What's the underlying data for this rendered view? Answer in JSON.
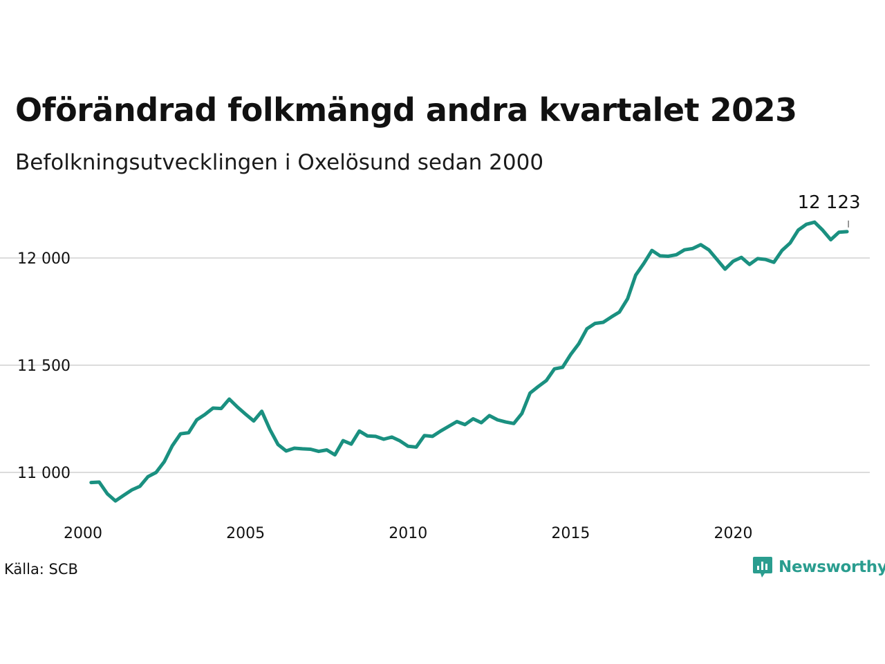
{
  "title": "Oförändrad folkmängd andra kvartalet 2023",
  "subtitle": "Befolkningsutvecklingen i Oxelösund sedan 2000",
  "source": "Källa: SCB",
  "brand": {
    "name": "Newsworthy",
    "icon": "newsworthy-logo-icon",
    "color": "#2a9d8f"
  },
  "chart_data": {
    "type": "line",
    "title": "Oförändrad folkmängd andra kvartalet 2023",
    "subtitle": "Befolkningsutvecklingen i Oxelösund sedan 2000",
    "xlabel": "",
    "ylabel": "",
    "x_ticks": [
      {
        "value": 2000,
        "label": "2000"
      },
      {
        "value": 2005,
        "label": "2005"
      },
      {
        "value": 2010,
        "label": "2010"
      },
      {
        "value": 2015,
        "label": "2015"
      },
      {
        "value": 2020,
        "label": "2020"
      }
    ],
    "y_ticks": [
      {
        "value": 11000,
        "label": "11 000"
      },
      {
        "value": 11500,
        "label": "11 500"
      },
      {
        "value": 12000,
        "label": "12 000"
      }
    ],
    "xlim": [
      2000,
      2024.2
    ],
    "ylim": [
      10800,
      12300
    ],
    "grid": "horizontal",
    "line_color": "#1a9080",
    "annotation": {
      "x": 2023.5,
      "value": 12123,
      "label": "12 123"
    },
    "series": [
      {
        "x": [
          2000.25,
          2000.5,
          2000.75,
          2001,
          2001.25,
          2001.5,
          2001.75,
          2002,
          2002.25,
          2002.5,
          2002.75,
          2003,
          2003.25,
          2003.5,
          2003.75,
          2004,
          2004.25,
          2004.5,
          2004.75,
          2005,
          2005.25,
          2005.5,
          2005.75,
          2006,
          2006.25,
          2006.5,
          2006.75,
          2007,
          2007.25,
          2007.5,
          2007.75,
          2008,
          2008.25,
          2008.5,
          2008.75,
          2009,
          2009.25,
          2009.5,
          2009.75,
          2010,
          2010.25,
          2010.5,
          2010.75,
          2011,
          2011.25,
          2011.5,
          2011.75,
          2012,
          2012.25,
          2012.5,
          2012.75,
          2013,
          2013.25,
          2013.5,
          2013.75,
          2014,
          2014.25,
          2014.5,
          2014.75,
          2015,
          2015.25,
          2015.5,
          2015.75,
          2016,
          2016.25,
          2016.5,
          2016.75,
          2017,
          2017.25,
          2017.5,
          2017.75,
          2018,
          2018.25,
          2018.5,
          2018.75,
          2019,
          2019.25,
          2019.5,
          2019.75,
          2020,
          2020.25,
          2020.5,
          2020.75,
          2021,
          2021.25,
          2021.5,
          2021.75,
          2022,
          2022.25,
          2022.5,
          2022.75,
          2023,
          2023.25,
          2023.5
        ],
        "values": [
          10953,
          10955,
          10900,
          10867,
          10893,
          10918,
          10935,
          10980,
          11000,
          11050,
          11125,
          11180,
          11185,
          11245,
          11270,
          11300,
          11298,
          11342,
          11305,
          11272,
          11240,
          11285,
          11200,
          11130,
          11100,
          11113,
          11110,
          11108,
          11098,
          11105,
          11082,
          11148,
          11132,
          11193,
          11170,
          11168,
          11155,
          11165,
          11147,
          11122,
          11118,
          11172,
          11168,
          11193,
          11215,
          11237,
          11223,
          11250,
          11232,
          11265,
          11245,
          11235,
          11228,
          11275,
          11370,
          11400,
          11428,
          11483,
          11490,
          11550,
          11600,
          11670,
          11695,
          11700,
          11725,
          11748,
          11810,
          11920,
          11975,
          12035,
          12010,
          12008,
          12015,
          12038,
          12044,
          12062,
          12038,
          11993,
          11948,
          11985,
          12003,
          11970,
          11997,
          11993,
          11980,
          12035,
          12070,
          12130,
          12157,
          12167,
          12130,
          12085,
          12120,
          12123
        ]
      }
    ]
  }
}
